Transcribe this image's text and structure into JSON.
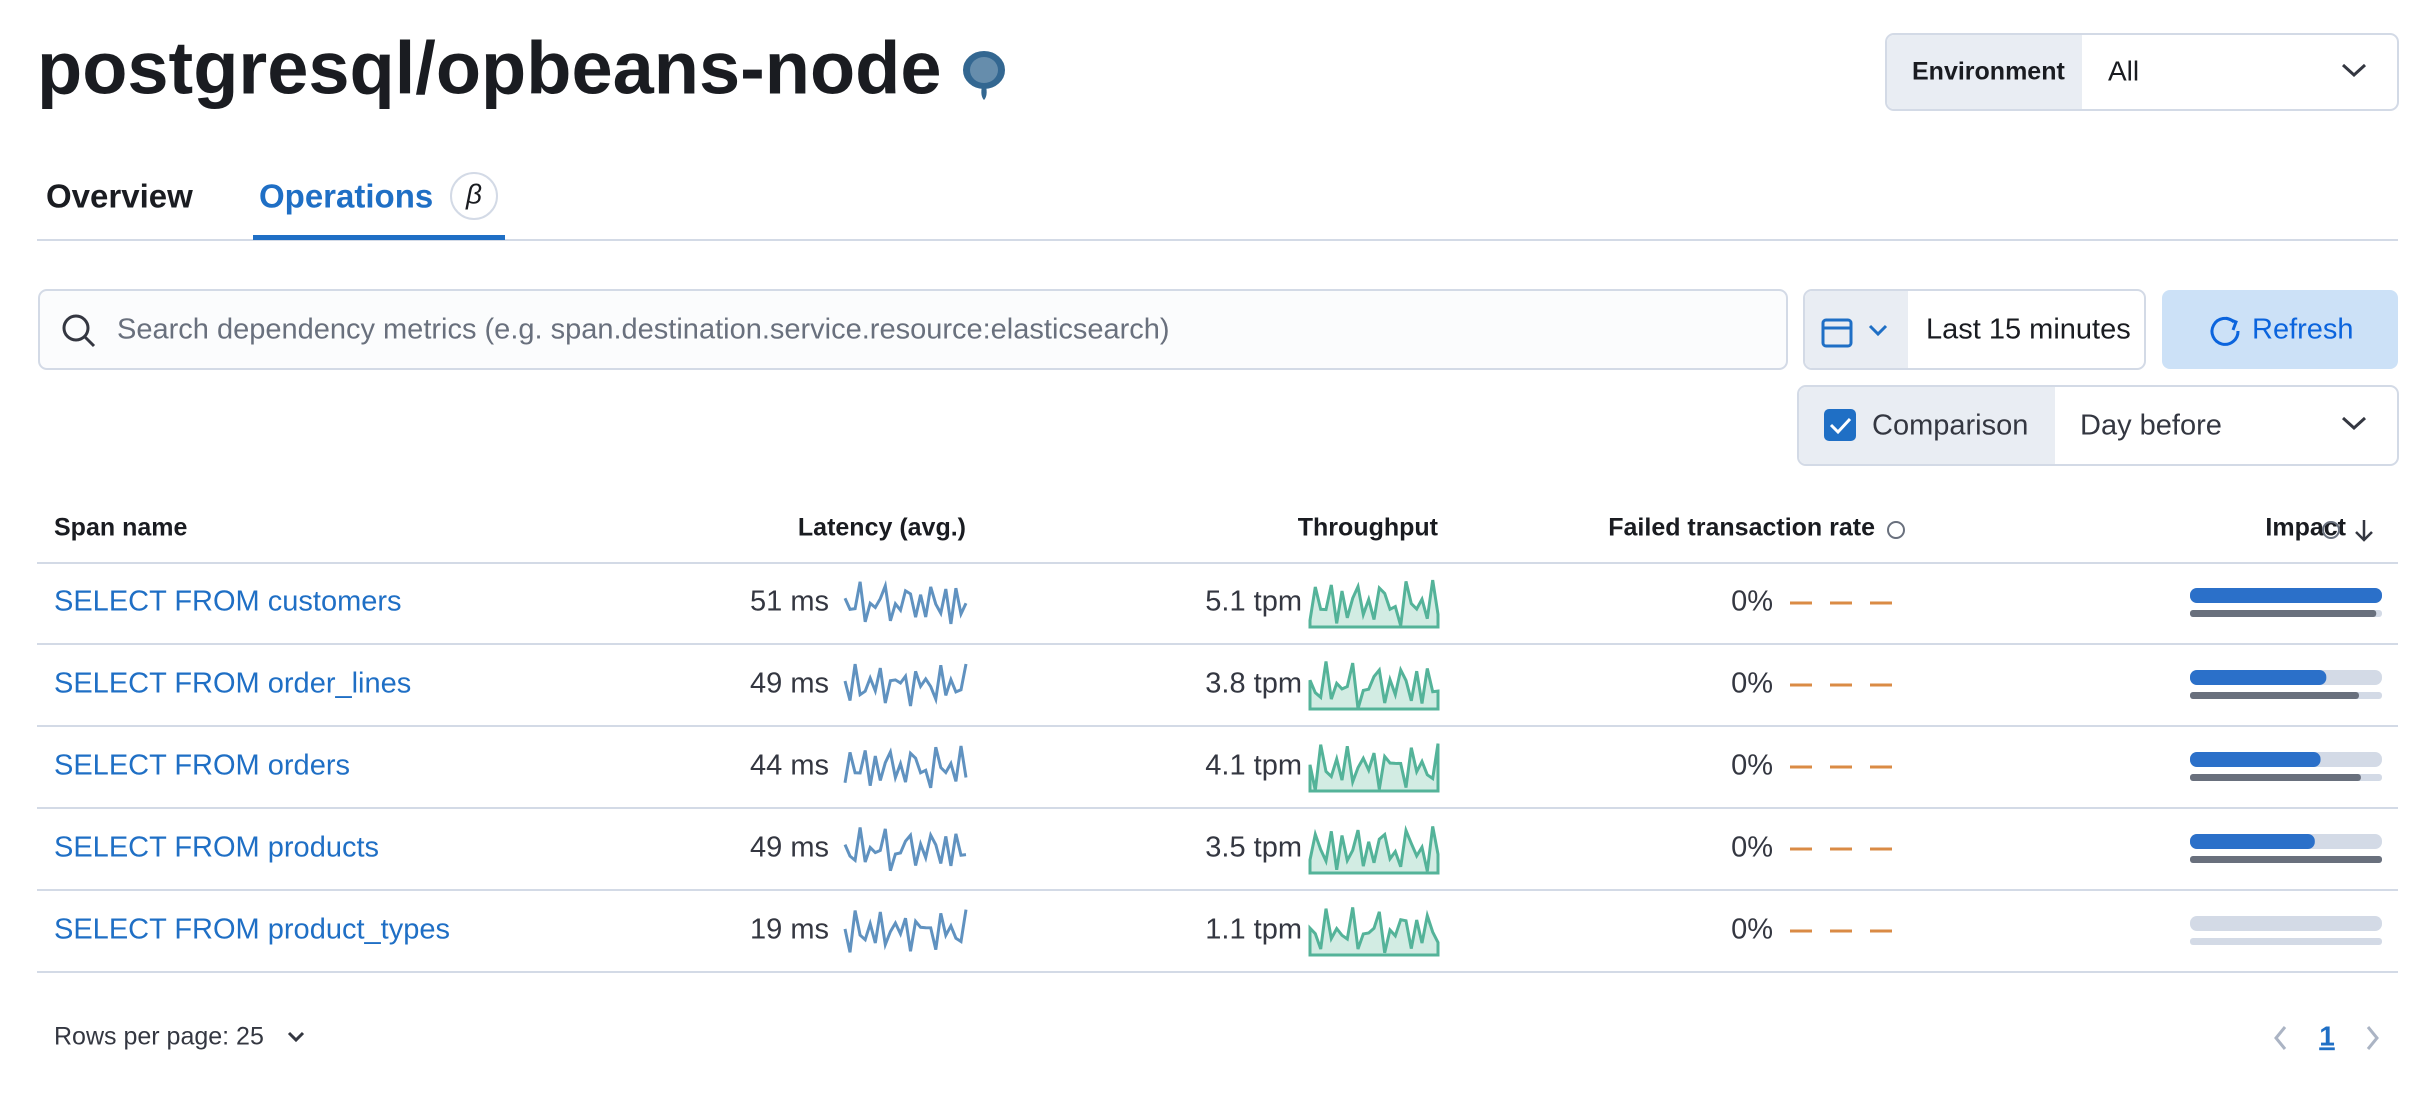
{
  "header": {
    "title": "postgresql/opbeans-node",
    "environment_label": "Environment",
    "environment_value": "All"
  },
  "tabs": [
    "Overview",
    "Operations"
  ],
  "beta": "β",
  "search": {
    "placeholder": "Search dependency metrics (e.g. span.destination.service.resource:elasticsearch)"
  },
  "date": {
    "range": "Last 15 minutes",
    "refresh": "Refresh"
  },
  "comparison": {
    "label": "Comparison",
    "value": "Day before"
  },
  "table": {
    "columns": [
      "Span name",
      "Latency (avg.)",
      "Throughput",
      "Failed transaction rate",
      "Impact"
    ],
    "rows": [
      [
        "SELECT FROM customers",
        "51 ms",
        "5.1 tpm",
        "0%"
      ],
      [
        "SELECT FROM order_lines",
        "49 ms",
        "3.8 tpm",
        "0%"
      ],
      [
        "SELECT FROM orders",
        "44 ms",
        "4.1 tpm",
        "0%"
      ],
      [
        "SELECT FROM products",
        "49 ms",
        "3.5 tpm",
        "0%"
      ],
      [
        "SELECT FROM product_types",
        "19 ms",
        "1.1 tpm",
        "0%"
      ]
    ],
    "impact": [
      [
        100,
        97
      ],
      [
        71,
        88
      ],
      [
        68,
        89
      ],
      [
        65,
        100
      ],
      [
        0,
        0
      ]
    ]
  },
  "footer": {
    "rows_per_page": "Rows per page: 25",
    "page": "1"
  }
}
